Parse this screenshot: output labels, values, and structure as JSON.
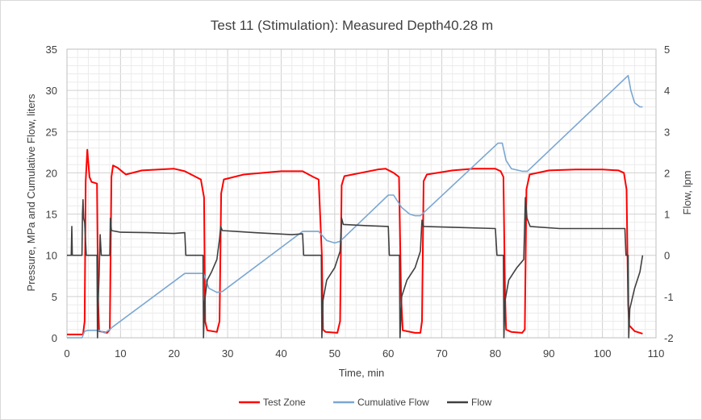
{
  "chart_data": {
    "type": "line",
    "title": "Test 11 (Stimulation): Measured Depth40.28 m",
    "xlabel": "Time, min",
    "ylabel": "Pressure, MPa and Cumulative Flow, liters",
    "y2label": "Flow, lpm",
    "xlim": [
      0,
      110
    ],
    "ylim": [
      0,
      35
    ],
    "y2lim": [
      -2,
      5
    ],
    "xticks": [
      "0",
      "10",
      "20",
      "30",
      "40",
      "50",
      "60",
      "70",
      "80",
      "90",
      "100",
      "110"
    ],
    "yticks": [
      "0",
      "5",
      "10",
      "15",
      "20",
      "25",
      "30",
      "35"
    ],
    "y2ticks": [
      "-2",
      "-1",
      "0",
      "1",
      "2",
      "3",
      "4",
      "5"
    ],
    "grid": true,
    "legend_position": "bottom",
    "series": [
      {
        "name": "Test Zone",
        "axis": "left",
        "color": "#ff0000",
        "points": [
          [
            0,
            0.4
          ],
          [
            3.0,
            0.4
          ],
          [
            3.3,
            2
          ],
          [
            3.5,
            19
          ],
          [
            3.8,
            22.8
          ],
          [
            4.2,
            19.5
          ],
          [
            4.6,
            18.9
          ],
          [
            5.6,
            18.7
          ],
          [
            5.8,
            5
          ],
          [
            6,
            0.8
          ],
          [
            7.5,
            0.6
          ],
          [
            8.0,
            1
          ],
          [
            8.3,
            19.5
          ],
          [
            8.6,
            20.9
          ],
          [
            9.5,
            20.6
          ],
          [
            11,
            19.8
          ],
          [
            14,
            20.3
          ],
          [
            20,
            20.5
          ],
          [
            22,
            20.2
          ],
          [
            25,
            19.2
          ],
          [
            25.6,
            17
          ],
          [
            25.8,
            2
          ],
          [
            26.2,
            0.9
          ],
          [
            28,
            0.7
          ],
          [
            28.5,
            2
          ],
          [
            28.8,
            17.5
          ],
          [
            29.3,
            19.2
          ],
          [
            33,
            19.8
          ],
          [
            40,
            20.2
          ],
          [
            44,
            20.2
          ],
          [
            46,
            19.5
          ],
          [
            47,
            19.2
          ],
          [
            47.6,
            10
          ],
          [
            47.8,
            1
          ],
          [
            48.3,
            0.7
          ],
          [
            50.5,
            0.6
          ],
          [
            51,
            2
          ],
          [
            51.3,
            18.5
          ],
          [
            51.8,
            19.6
          ],
          [
            58,
            20.4
          ],
          [
            59.5,
            20.5
          ],
          [
            61,
            20.0
          ],
          [
            62,
            19.5
          ],
          [
            62.4,
            5
          ],
          [
            62.7,
            0.9
          ],
          [
            65,
            0.6
          ],
          [
            66,
            0.6
          ],
          [
            66.3,
            2
          ],
          [
            66.6,
            19
          ],
          [
            67.2,
            19.8
          ],
          [
            72,
            20.3
          ],
          [
            76,
            20.5
          ],
          [
            80,
            20.5
          ],
          [
            81,
            20.2
          ],
          [
            81.5,
            19.5
          ],
          [
            81.8,
            5
          ],
          [
            82,
            1
          ],
          [
            83,
            0.7
          ],
          [
            85,
            0.6
          ],
          [
            85.5,
            1
          ],
          [
            85.8,
            18
          ],
          [
            86.4,
            19.8
          ],
          [
            90,
            20.3
          ],
          [
            95,
            20.4
          ],
          [
            100,
            20.4
          ],
          [
            103,
            20.3
          ],
          [
            104,
            20.0
          ],
          [
            104.5,
            18
          ],
          [
            104.8,
            4
          ],
          [
            105,
            1.5
          ],
          [
            106,
            0.8
          ],
          [
            107.5,
            0.5
          ]
        ]
      },
      {
        "name": "Cumulative Flow",
        "axis": "left",
        "color": "#7ba7d2",
        "points": [
          [
            0,
            0
          ],
          [
            2.8,
            0
          ],
          [
            3.3,
            0.8
          ],
          [
            4,
            0.9
          ],
          [
            6,
            0.9
          ],
          [
            7,
            0.6
          ],
          [
            8,
            1.0
          ],
          [
            8.5,
            1.3
          ],
          [
            22,
            7.8
          ],
          [
            25.5,
            7.8
          ],
          [
            26.5,
            6.0
          ],
          [
            28,
            5.5
          ],
          [
            29,
            5.6
          ],
          [
            44,
            12.9
          ],
          [
            47,
            12.9
          ],
          [
            48.5,
            11.8
          ],
          [
            50,
            11.5
          ],
          [
            51,
            11.7
          ],
          [
            60,
            17.3
          ],
          [
            61,
            17.3
          ],
          [
            62.5,
            15.8
          ],
          [
            64,
            15.0
          ],
          [
            65,
            14.8
          ],
          [
            66,
            14.8
          ],
          [
            80.5,
            23.6
          ],
          [
            81.3,
            23.6
          ],
          [
            82,
            21.5
          ],
          [
            83,
            20.5
          ],
          [
            85,
            20.2
          ],
          [
            86,
            20.2
          ],
          [
            104.8,
            31.8
          ],
          [
            105.3,
            30
          ],
          [
            106,
            28.5
          ],
          [
            107,
            28.0
          ],
          [
            107.5,
            28.0
          ]
        ]
      },
      {
        "name": "Flow",
        "axis": "right",
        "color": "#404040",
        "points": [
          [
            0,
            0
          ],
          [
            0.8,
            0
          ],
          [
            0.9,
            0.7
          ],
          [
            1.0,
            0
          ],
          [
            2.8,
            0
          ],
          [
            2.9,
            1.0
          ],
          [
            3.0,
            1.35
          ],
          [
            3.1,
            0.9
          ],
          [
            3.3,
            0.8
          ],
          [
            3.6,
            0
          ],
          [
            5.6,
            0
          ],
          [
            5.7,
            -2
          ],
          [
            5.8,
            -1.2
          ],
          [
            6,
            -0.5
          ],
          [
            6.2,
            0.5
          ],
          [
            6.4,
            0
          ],
          [
            8,
            0
          ],
          [
            8.1,
            0.9
          ],
          [
            8.3,
            0.6
          ],
          [
            10,
            0.56
          ],
          [
            15,
            0.55
          ],
          [
            20,
            0.53
          ],
          [
            22,
            0.55
          ],
          [
            22.2,
            0
          ],
          [
            25.4,
            0
          ],
          [
            25.5,
            -2
          ],
          [
            25.7,
            -1.1
          ],
          [
            26.2,
            -0.6
          ],
          [
            27,
            -0.4
          ],
          [
            28,
            -0.1
          ],
          [
            28.5,
            0.4
          ],
          [
            28.7,
            0.7
          ],
          [
            29,
            0.6
          ],
          [
            35,
            0.55
          ],
          [
            42,
            0.5
          ],
          [
            44,
            0.52
          ],
          [
            44.2,
            0
          ],
          [
            47.5,
            0
          ],
          [
            47.6,
            -2
          ],
          [
            47.8,
            -1.1
          ],
          [
            48.5,
            -0.6
          ],
          [
            50,
            -0.3
          ],
          [
            51,
            0.1
          ],
          [
            51.3,
            0.9
          ],
          [
            51.6,
            0.75
          ],
          [
            56,
            0.72
          ],
          [
            60,
            0.7
          ],
          [
            60.2,
            0
          ],
          [
            62.1,
            0
          ],
          [
            62.2,
            -2
          ],
          [
            62.5,
            -1
          ],
          [
            63.5,
            -0.6
          ],
          [
            65,
            -0.3
          ],
          [
            66,
            0.1
          ],
          [
            66.3,
            0.85
          ],
          [
            66.6,
            0.7
          ],
          [
            72,
            0.68
          ],
          [
            80,
            0.65
          ],
          [
            80.3,
            0
          ],
          [
            81.5,
            0
          ],
          [
            81.6,
            -2
          ],
          [
            81.8,
            -1.1
          ],
          [
            82.5,
            -0.6
          ],
          [
            84,
            -0.3
          ],
          [
            85.3,
            -0.1
          ],
          [
            85.6,
            1.4
          ],
          [
            85.9,
            0.9
          ],
          [
            86.5,
            0.7
          ],
          [
            92,
            0.65
          ],
          [
            100,
            0.65
          ],
          [
            104.2,
            0.65
          ],
          [
            104.4,
            0
          ],
          [
            104.8,
            0
          ],
          [
            104.9,
            -2
          ],
          [
            105.1,
            -1.3
          ],
          [
            106,
            -0.8
          ],
          [
            107,
            -0.4
          ],
          [
            107.5,
            0
          ]
        ]
      }
    ]
  }
}
